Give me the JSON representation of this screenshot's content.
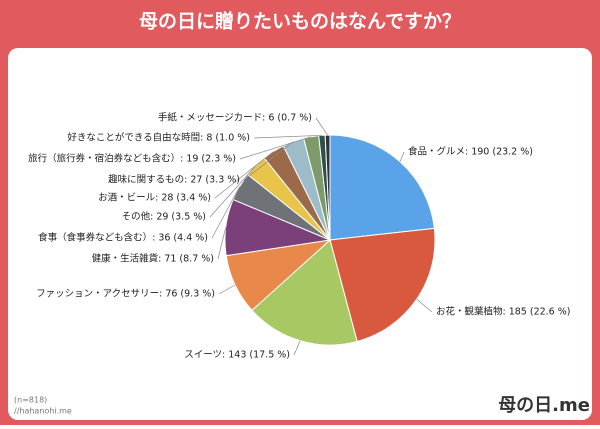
{
  "chart_data": {
    "type": "pie",
    "title": "母の日に贈りたいものはなんですか？",
    "categories": [
      "食品・グルメ",
      "お花・観葉植物",
      "スイーツ",
      "ファッション・アクセサリー",
      "健康・生活雑貨",
      "食事（食事券なども含む）",
      "その他",
      "お酒・ビール",
      "趣味に関するもの",
      "旅行（旅行券・宿泊券なども含む）",
      "好きなことができる自由な時間",
      "手紙・メッセージカード"
    ],
    "values": [
      190,
      185,
      143,
      76,
      71,
      36,
      29,
      28,
      27,
      19,
      8,
      6
    ],
    "value_labels": [
      "食品・グルメ: 190 (23.2 %)",
      "お花・観葉植物: 185 (22.6 %)",
      "スイーツ: 143 (17.5 %)",
      "ファッション・アクセサリー: 76 (9.3 %)",
      "健康・生活雑貨: 71 (8.7 %)",
      "食事（食事券なども含む）: 36 (4.4 %)",
      "その他: 29 (3.5 %)",
      "お酒・ビール: 28 (3.4 %)",
      "趣味に関するもの: 27 (3.3 %)",
      "旅行（旅行券・宿泊券なども含む）: 19 (2.3 %)",
      "好きなことができる自由な時間: 8 (1.0 %)",
      "手紙・メッセージカード: 6 (0.7 %)"
    ],
    "colors": [
      "#5ba3e8",
      "#d9593f",
      "#a8c864",
      "#e8884a",
      "#7b3f7a",
      "#6f7378",
      "#e8c44a",
      "#9c6a4a",
      "#9bbcc8",
      "#7f9a6a",
      "#2f4f4f",
      "#333333"
    ],
    "note": "(n=818)",
    "source": "//hahanohi.me",
    "logo": "母の日.me"
  }
}
